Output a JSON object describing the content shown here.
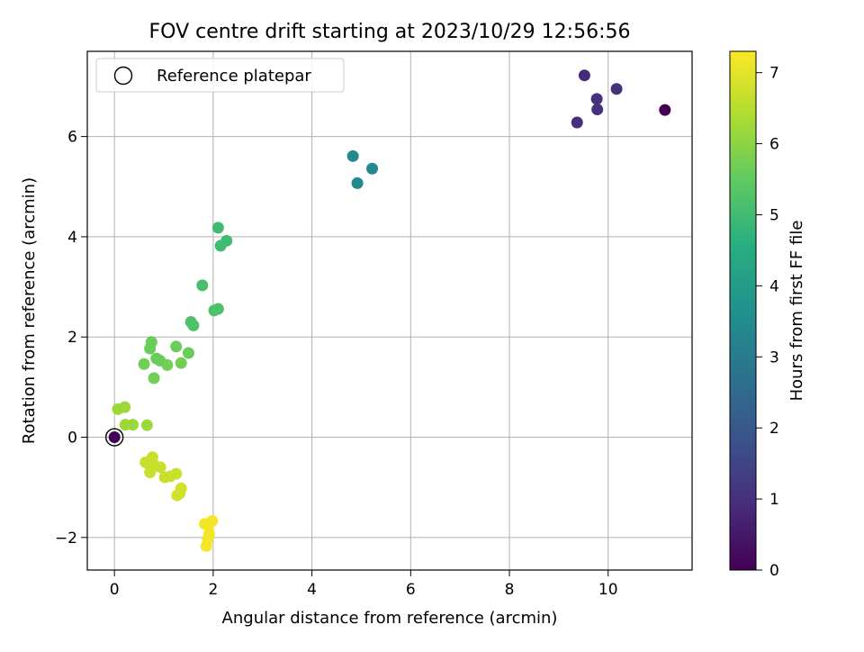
{
  "chart_data": {
    "type": "scatter",
    "title": "FOV centre drift starting at 2023/10/29 12:56:56",
    "xlabel": "Angular distance from reference (arcmin)",
    "ylabel": "Rotation from reference (arcmin)",
    "xlim": [
      -0.55,
      11.7
    ],
    "ylim": [
      -2.65,
      7.7
    ],
    "xticks": [
      0,
      2,
      4,
      6,
      8,
      10
    ],
    "xtick_labels": [
      "0",
      "2",
      "4",
      "6",
      "8",
      "10"
    ],
    "yticks": [
      -2,
      0,
      2,
      4,
      6
    ],
    "ytick_labels": [
      "−2",
      "0",
      "2",
      "4",
      "6"
    ],
    "grid": true,
    "legend": {
      "placement": "top-left",
      "entries": [
        "Reference platepar"
      ]
    },
    "reference_point": {
      "x": 0,
      "y": 0,
      "label": "Reference platepar"
    },
    "colorbar": {
      "label": "Hours from first FF file",
      "range": [
        0,
        7.3
      ],
      "ticks": [
        0,
        1,
        2,
        3,
        4,
        5,
        6,
        7
      ],
      "tick_labels": [
        "0",
        "1",
        "2",
        "3",
        "4",
        "5",
        "6",
        "7"
      ],
      "colormap": "viridis"
    },
    "points": [
      {
        "x": 11.15,
        "y": 6.53,
        "hours": 0.0
      },
      {
        "x": 9.52,
        "y": 7.22,
        "hours": 0.9
      },
      {
        "x": 10.17,
        "y": 6.95,
        "hours": 1.0
      },
      {
        "x": 9.77,
        "y": 6.75,
        "hours": 1.0
      },
      {
        "x": 9.78,
        "y": 6.54,
        "hours": 1.0
      },
      {
        "x": 9.37,
        "y": 6.28,
        "hours": 0.9
      },
      {
        "x": 4.83,
        "y": 5.61,
        "hours": 3.4
      },
      {
        "x": 5.22,
        "y": 5.36,
        "hours": 3.4
      },
      {
        "x": 4.92,
        "y": 5.07,
        "hours": 3.4
      },
      {
        "x": 2.1,
        "y": 4.18,
        "hours": 5.0
      },
      {
        "x": 2.27,
        "y": 3.92,
        "hours": 5.0
      },
      {
        "x": 2.15,
        "y": 3.82,
        "hours": 5.0
      },
      {
        "x": 1.78,
        "y": 3.03,
        "hours": 5.1
      },
      {
        "x": 2.1,
        "y": 2.56,
        "hours": 5.2
      },
      {
        "x": 2.02,
        "y": 2.53,
        "hours": 5.2
      },
      {
        "x": 1.55,
        "y": 2.3,
        "hours": 5.2
      },
      {
        "x": 1.6,
        "y": 2.23,
        "hours": 5.2
      },
      {
        "x": 0.75,
        "y": 1.9,
        "hours": 5.6
      },
      {
        "x": 0.72,
        "y": 1.77,
        "hours": 5.6
      },
      {
        "x": 1.25,
        "y": 1.81,
        "hours": 5.6
      },
      {
        "x": 1.5,
        "y": 1.68,
        "hours": 5.6
      },
      {
        "x": 0.85,
        "y": 1.57,
        "hours": 5.6
      },
      {
        "x": 0.92,
        "y": 1.53,
        "hours": 5.6
      },
      {
        "x": 0.6,
        "y": 1.46,
        "hours": 5.7
      },
      {
        "x": 1.07,
        "y": 1.44,
        "hours": 5.7
      },
      {
        "x": 1.35,
        "y": 1.48,
        "hours": 5.7
      },
      {
        "x": 0.8,
        "y": 1.18,
        "hours": 5.7
      },
      {
        "x": 0.07,
        "y": 0.56,
        "hours": 6.2
      },
      {
        "x": 0.21,
        "y": 0.6,
        "hours": 6.2
      },
      {
        "x": 0.22,
        "y": 0.25,
        "hours": 6.2
      },
      {
        "x": 0.37,
        "y": 0.25,
        "hours": 6.2
      },
      {
        "x": 0.66,
        "y": 0.24,
        "hours": 6.2
      },
      {
        "x": 0.63,
        "y": -0.5,
        "hours": 6.7
      },
      {
        "x": 0.77,
        "y": -0.4,
        "hours": 6.7
      },
      {
        "x": 0.8,
        "y": -0.55,
        "hours": 6.7
      },
      {
        "x": 0.72,
        "y": -0.7,
        "hours": 6.7
      },
      {
        "x": 0.93,
        "y": -0.6,
        "hours": 6.7
      },
      {
        "x": 1.02,
        "y": -0.8,
        "hours": 6.7
      },
      {
        "x": 1.13,
        "y": -0.78,
        "hours": 6.7
      },
      {
        "x": 1.25,
        "y": -0.73,
        "hours": 6.7
      },
      {
        "x": 1.35,
        "y": -1.02,
        "hours": 6.8
      },
      {
        "x": 1.32,
        "y": -1.12,
        "hours": 6.8
      },
      {
        "x": 1.27,
        "y": -1.16,
        "hours": 6.8
      },
      {
        "x": 1.98,
        "y": -1.67,
        "hours": 7.2
      },
      {
        "x": 1.83,
        "y": -1.73,
        "hours": 7.2
      },
      {
        "x": 1.9,
        "y": -1.77,
        "hours": 7.2
      },
      {
        "x": 1.92,
        "y": -1.93,
        "hours": 7.2
      },
      {
        "x": 1.89,
        "y": -2.03,
        "hours": 7.2
      },
      {
        "x": 1.86,
        "y": -2.17,
        "hours": 7.2
      },
      {
        "x": 0.0,
        "y": 0.0,
        "hours": 0.0
      }
    ]
  }
}
